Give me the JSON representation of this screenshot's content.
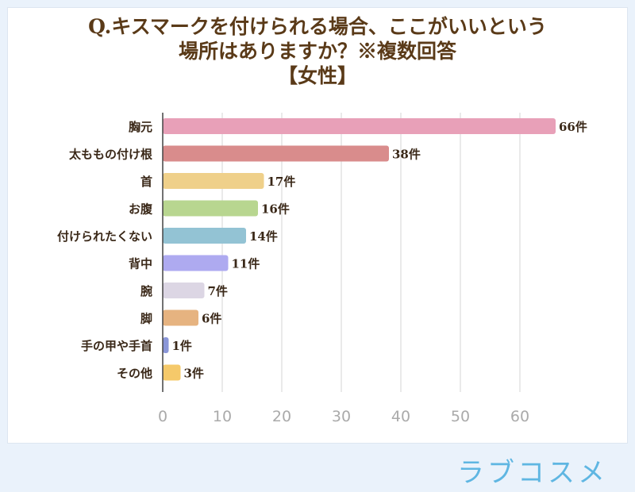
{
  "title_lines": [
    "Q.キスマークを付けられる場合、ここがいいという",
    "場所はありますか？※複数回答",
    "【女性】"
  ],
  "logo_text": "ラブコスメ",
  "chart_data": {
    "type": "bar",
    "orientation": "horizontal",
    "categories": [
      "胸元",
      "太ももの付け根",
      "首",
      "お腹",
      "付けられたくない",
      "背中",
      "腕",
      "脚",
      "手の甲や手首",
      "その他"
    ],
    "values": [
      66,
      38,
      17,
      16,
      14,
      11,
      7,
      6,
      1,
      3
    ],
    "value_labels": [
      "66件",
      "38件",
      "17件",
      "16件",
      "14件",
      "11件",
      "7件",
      "6件",
      "1件",
      "3件"
    ],
    "colors": [
      "#e8a0b8",
      "#d98c8c",
      "#efd08a",
      "#b8d690",
      "#93c3d4",
      "#aeaaf0",
      "#dcd6e4",
      "#e6b380",
      "#8a96d8",
      "#f5c96a"
    ],
    "xlim": [
      0,
      65
    ],
    "xticks": [
      0,
      10,
      20,
      30,
      40,
      50,
      60
    ],
    "grid": true
  }
}
